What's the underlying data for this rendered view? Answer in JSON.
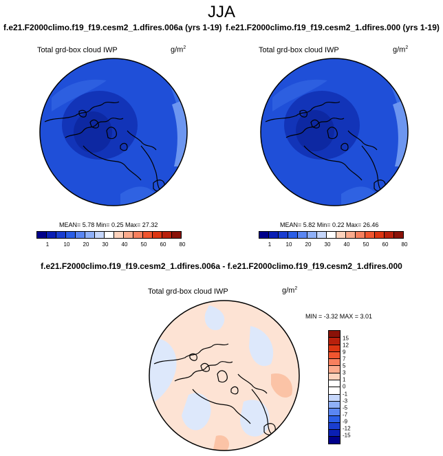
{
  "season": "JJA",
  "panels": {
    "left": {
      "title": "f.e21.F2000climo.f19_f19.cesm2_1.dfires.006a (yrs 1-19)",
      "variable": "Total grd-box cloud IWP",
      "units_base": "g/m",
      "units_exp": "2",
      "stats": "MEAN=  5.78  Min=  0.25  Max= 27.32"
    },
    "right": {
      "title": "f.e21.F2000climo.f19_f19.cesm2_1.dfires.000 (yrs 1-19)",
      "variable": "Total grd-box cloud IWP",
      "units_base": "g/m",
      "units_exp": "2",
      "stats": "MEAN=  5.82  Min=  0.22  Max= 26.46"
    },
    "diff": {
      "title": "f.e21.F2000climo.f19_f19.cesm2_1.dfires.006a - f.e21.F2000climo.f19_f19.cesm2_1.dfires.000",
      "variable": "Total grd-box cloud IWP",
      "units_base": "g/m",
      "units_exp": "2",
      "stats": "MIN = -3.32 MAX =  3.01"
    }
  },
  "abs_colorbar": {
    "colors": [
      "#00008a",
      "#0a1fb4",
      "#1a3ed0",
      "#2b5ee6",
      "#5a86f2",
      "#8fb0f8",
      "#c6d7fb",
      "#ffffff",
      "#fdd3bd",
      "#fbab8d",
      "#f7805e",
      "#f0552f",
      "#dc3512",
      "#b8200c",
      "#8a1208"
    ],
    "ticks": [
      "1",
      "10",
      "20",
      "30",
      "40",
      "50",
      "60",
      "80"
    ]
  },
  "diff_colorbar": {
    "colors": [
      "#8a1208",
      "#b8200c",
      "#dc3512",
      "#f0552f",
      "#f7805e",
      "#fbab8d",
      "#fdd3bd",
      "#ffffff",
      "#ffffff",
      "#c6d7fb",
      "#8fb0f8",
      "#5a86f2",
      "#2b5ee6",
      "#1a3ed0",
      "#0a1fb4",
      "#00008a"
    ],
    "ticks": [
      "15",
      "12",
      "9",
      "7",
      "5",
      "3",
      "1",
      "0",
      "-1",
      "-3",
      "-5",
      "-7",
      "-9",
      "-12",
      "-15"
    ]
  }
}
